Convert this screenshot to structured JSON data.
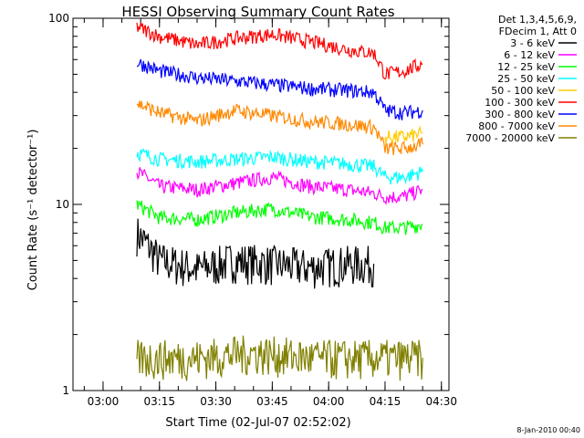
{
  "chart_data": {
    "type": "line",
    "title": "HESSI Observing Summary Count Rates",
    "xlabel": "Start Time (02-Jul-07 02:52:02)",
    "ylabel": "Count Rate (s⁻¹ detector⁻¹)",
    "yscale": "log",
    "ylim": [
      1,
      100
    ],
    "y_ticks": [
      {
        "value": 1,
        "label": "1"
      },
      {
        "value": 10,
        "label": "10"
      },
      {
        "value": 100,
        "label": "100"
      }
    ],
    "xlim": [
      "02:52",
      "04:32"
    ],
    "x_ticks": [
      {
        "time": "03:00",
        "label": "03:00"
      },
      {
        "time": "03:15",
        "label": "03:15"
      },
      {
        "time": "03:30",
        "label": "03:30"
      },
      {
        "time": "03:45",
        "label": "03:45"
      },
      {
        "time": "04:00",
        "label": "04:00"
      },
      {
        "time": "04:15",
        "label": "04:15"
      },
      {
        "time": "04:30",
        "label": "04:30"
      }
    ],
    "legend_header": [
      "Det 1,3,4,5,6,9,",
      "FDecim 1, Att 0"
    ],
    "legend_position": "outside-right",
    "series": [
      {
        "name": "3 - 6 keV",
        "color": "#000000",
        "x": [
          "03:09",
          "03:15",
          "03:25",
          "03:35",
          "03:45",
          "03:55",
          "04:05",
          "04:12"
        ],
        "y": [
          7,
          5.0,
          4.5,
          5.0,
          4.8,
          4.6,
          4.8,
          4.8
        ]
      },
      {
        "name": "6 - 12 keV",
        "color": "#ff00ff",
        "x": [
          "03:09",
          "03:15",
          "03:25",
          "03:35",
          "03:45",
          "03:55",
          "04:05",
          "04:12",
          "04:15",
          "04:20",
          "04:25"
        ],
        "y": [
          15,
          12.5,
          12,
          13,
          14,
          12.5,
          12,
          11.5,
          11,
          11,
          12
        ]
      },
      {
        "name": "12 - 25 keV",
        "color": "#00ff00",
        "x": [
          "03:09",
          "03:15",
          "03:25",
          "03:35",
          "03:45",
          "03:55",
          "04:05",
          "04:12",
          "04:15",
          "04:20",
          "04:25"
        ],
        "y": [
          10,
          8.5,
          8.3,
          9,
          9.5,
          8.6,
          8.3,
          8,
          7.5,
          7.5,
          7.8
        ]
      },
      {
        "name": "25 - 50 keV",
        "color": "#00ffff",
        "x": [
          "03:09",
          "03:15",
          "03:25",
          "03:35",
          "03:45",
          "03:55",
          "04:05",
          "04:12",
          "04:15",
          "04:20",
          "04:25"
        ],
        "y": [
          19,
          17.5,
          17,
          17.5,
          18,
          17,
          16.5,
          16,
          14,
          14,
          15
        ]
      },
      {
        "name": "50 - 100 keV",
        "color": "#ffcc00",
        "x": [
          "04:15",
          "04:20",
          "04:25"
        ],
        "y": [
          23,
          23,
          24
        ]
      },
      {
        "name": "100 - 300 keV",
        "color": "#ff0000",
        "x": [
          "03:09",
          "03:15",
          "03:25",
          "03:35",
          "03:45",
          "03:55",
          "04:05",
          "04:12",
          "04:15",
          "04:20",
          "04:25"
        ],
        "y": [
          90,
          80,
          72,
          78,
          82,
          75,
          68,
          65,
          50,
          52,
          57
        ]
      },
      {
        "name": "300 - 800 keV",
        "color": "#0000ff",
        "x": [
          "03:09",
          "03:15",
          "03:25",
          "03:35",
          "03:45",
          "03:55",
          "04:05",
          "04:12",
          "04:15",
          "04:20",
          "04:25"
        ],
        "y": [
          58,
          52,
          48,
          46,
          44,
          42,
          41,
          40,
          32,
          31,
          32
        ]
      },
      {
        "name": "800 - 7000 keV",
        "color": "#ff8800",
        "x": [
          "03:09",
          "03:15",
          "03:25",
          "03:35",
          "03:45",
          "03:55",
          "04:05",
          "04:12",
          "04:15",
          "04:20",
          "04:25"
        ],
        "y": [
          35,
          31,
          28,
          32,
          30,
          28,
          27,
          26,
          20,
          20,
          21
        ]
      },
      {
        "name": "7000 - 20000 keV",
        "color": "#808000",
        "x": [
          "03:09",
          "03:25",
          "03:40",
          "03:55",
          "04:10",
          "04:25"
        ],
        "y": [
          1.5,
          1.5,
          1.6,
          1.5,
          1.5,
          1.5
        ]
      }
    ]
  },
  "footer": {
    "timestamp": "8-Jan-2010 00:40"
  }
}
